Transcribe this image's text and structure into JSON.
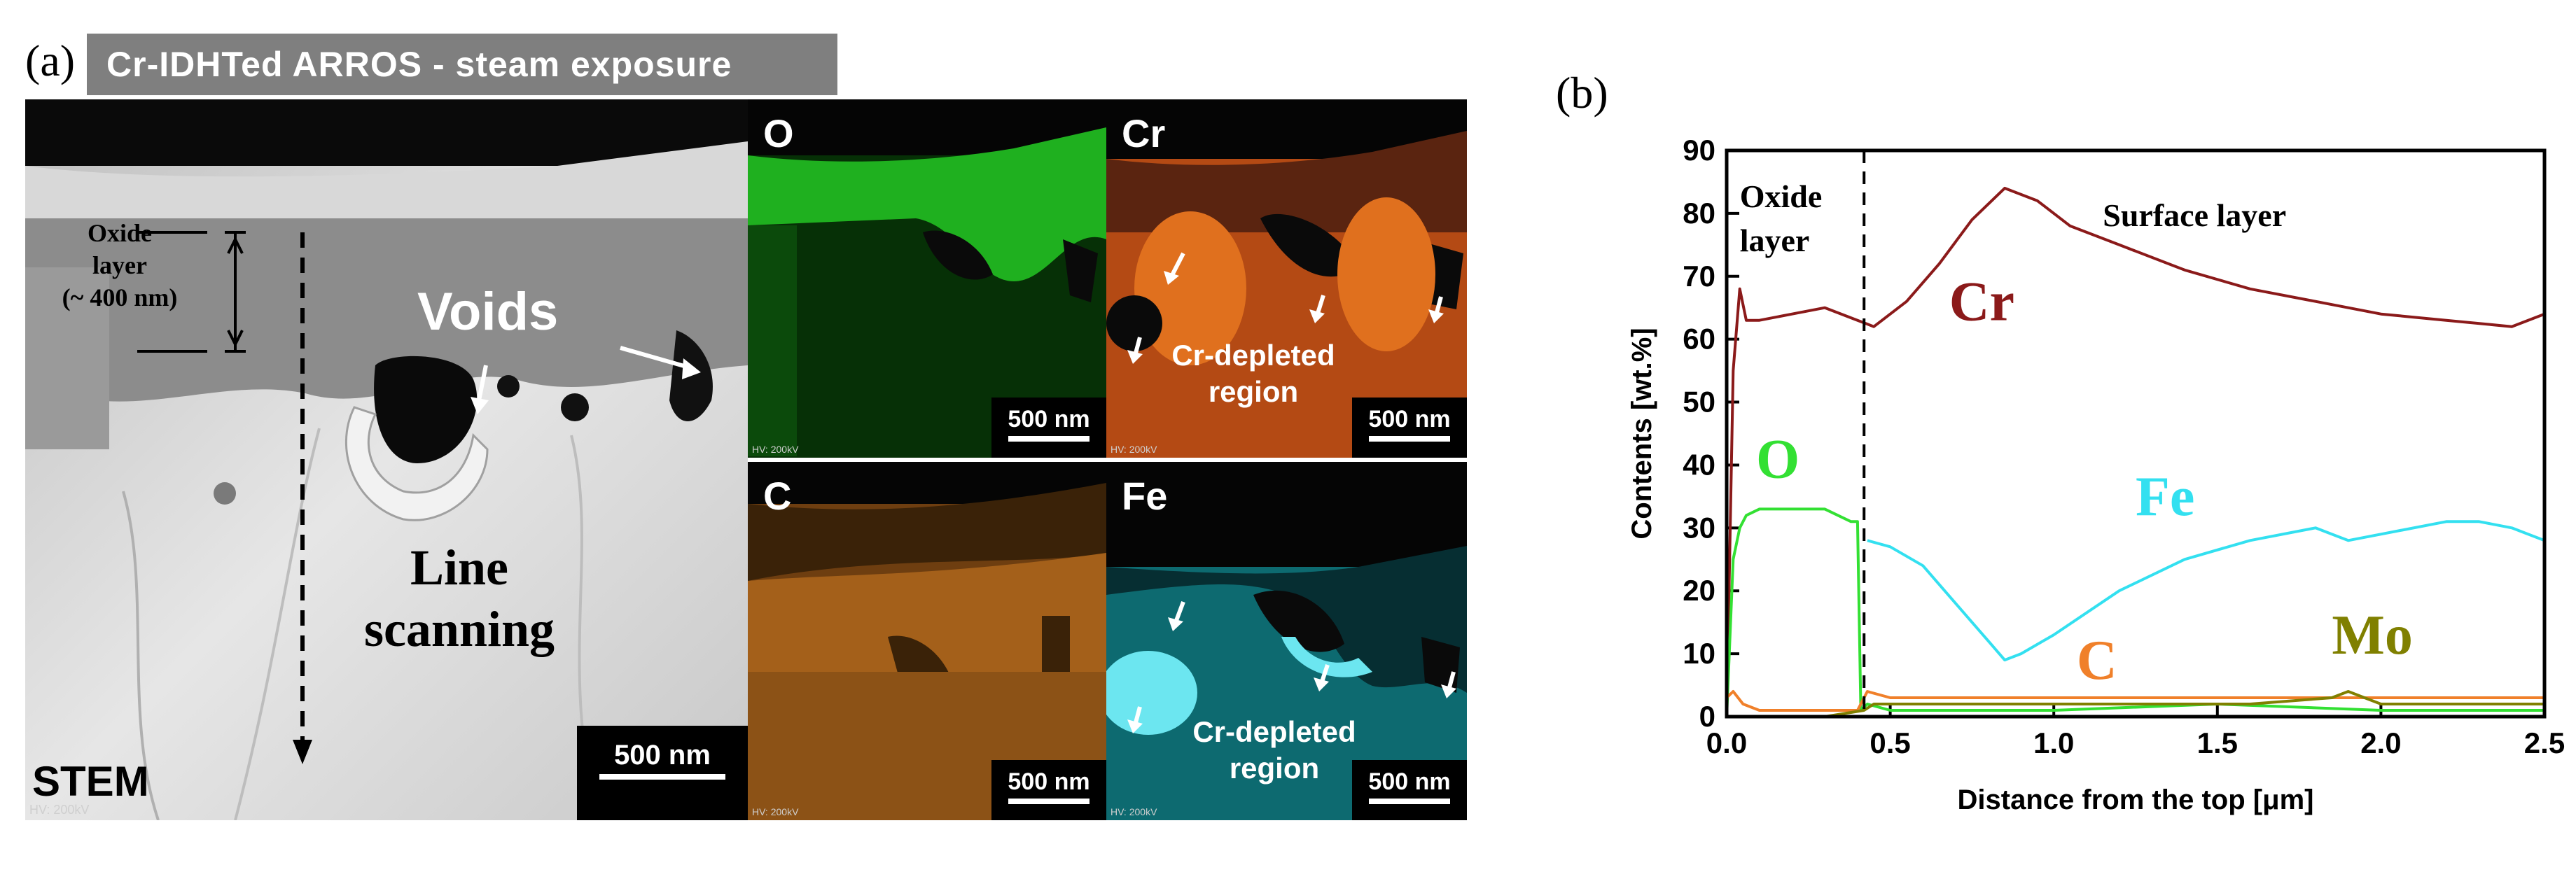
{
  "panel_a": {
    "label": "(a)",
    "title": "Cr-IDHTed ARROS - steam exposure",
    "stem": {
      "oxide_label_line1": "Oxide",
      "oxide_label_line2": "layer",
      "oxide_label_line3": "(~ 400 nm)",
      "voids": "Voids",
      "line_scan_line1": "Line",
      "line_scan_line2": "scanning",
      "stem_label": "STEM",
      "hv_text": "HV: 200kV",
      "scalebar": "500 nm"
    },
    "maps": {
      "o": {
        "title": "O",
        "scalebar": "500 nm",
        "hv": "HV: 200kV"
      },
      "cr": {
        "title": "Cr",
        "scalebar": "500 nm",
        "hv": "HV: 200kV",
        "region_line1": "Cr-depleted",
        "region_line2": "region"
      },
      "c": {
        "title": "C",
        "scalebar": "500 nm",
        "hv": "HV: 200kV"
      },
      "fe": {
        "title": "Fe",
        "scalebar": "500 nm",
        "hv": "HV: 200kV",
        "region_line1": "Cr-depleted",
        "region_line2": "region"
      }
    }
  },
  "panel_b": {
    "label": "(b)",
    "annotations": {
      "oxide_line1": "Oxide",
      "oxide_line2": "layer",
      "surface": "Surface layer"
    }
  },
  "chart_data": {
    "type": "line",
    "title": "",
    "xlabel": "Distance from the top [μm]",
    "ylabel": "Contents [wt.%]",
    "xlim": [
      0,
      2.5
    ],
    "ylim": [
      0,
      90
    ],
    "xticks": [
      0.0,
      0.5,
      1.0,
      1.5,
      2.0,
      2.5
    ],
    "xtick_labels": [
      "0.0",
      "0.5",
      "1.0",
      "1.5",
      "2.0",
      "2.5"
    ],
    "yticks": [
      0,
      10,
      20,
      30,
      40,
      50,
      60,
      70,
      80,
      90
    ],
    "ytick_labels": [
      "0",
      "10",
      "20",
      "30",
      "40",
      "50",
      "60",
      "70",
      "80",
      "90"
    ],
    "divider_x": 0.42,
    "series": [
      {
        "name": "Cr",
        "color": "#8b1a1a",
        "x": [
          0.0,
          0.02,
          0.04,
          0.06,
          0.1,
          0.2,
          0.3,
          0.4,
          0.45,
          0.55,
          0.65,
          0.75,
          0.85,
          0.95,
          1.05,
          1.2,
          1.4,
          1.6,
          1.8,
          2.0,
          2.2,
          2.4,
          2.5
        ],
        "y": [
          0,
          55,
          68,
          63,
          63,
          64,
          65,
          63,
          62,
          66,
          72,
          79,
          84,
          82,
          78,
          75,
          71,
          68,
          66,
          64,
          63,
          62,
          64
        ]
      },
      {
        "name": "Fe",
        "color": "#33e0f0",
        "x": [
          0.43,
          0.5,
          0.6,
          0.7,
          0.8,
          0.85,
          0.9,
          1.0,
          1.2,
          1.4,
          1.6,
          1.8,
          1.9,
          2.0,
          2.2,
          2.3,
          2.4,
          2.5
        ],
        "y": [
          28,
          27,
          24,
          18,
          12,
          9,
          10,
          13,
          20,
          25,
          28,
          30,
          28,
          29,
          31,
          31,
          30,
          28
        ]
      },
      {
        "name": "O",
        "color": "#33e033",
        "x": [
          0.0,
          0.02,
          0.04,
          0.06,
          0.1,
          0.2,
          0.3,
          0.38,
          0.4,
          0.41,
          0.43,
          0.5,
          1.0,
          1.5,
          2.0,
          2.5
        ],
        "y": [
          0,
          25,
          30,
          32,
          33,
          33,
          33,
          31,
          31,
          1,
          2,
          1,
          1,
          2,
          1,
          1
        ]
      },
      {
        "name": "C",
        "color": "#f0802a",
        "x": [
          0.0,
          0.02,
          0.05,
          0.1,
          0.2,
          0.3,
          0.4,
          0.43,
          0.5,
          0.7,
          1.0,
          1.3,
          1.6,
          1.9,
          2.2,
          2.5
        ],
        "y": [
          3,
          4,
          2,
          1,
          1,
          1,
          1,
          4,
          3,
          3,
          3,
          3,
          3,
          3,
          3,
          3
        ]
      },
      {
        "name": "Mo",
        "color": "#808000",
        "x": [
          0.0,
          0.3,
          0.42,
          0.45,
          0.7,
          1.0,
          1.3,
          1.6,
          1.85,
          1.9,
          2.0,
          2.2,
          2.5
        ],
        "y": [
          0,
          0,
          1,
          2,
          2,
          2,
          2,
          2,
          3,
          4,
          2,
          2,
          2
        ]
      }
    ],
    "labels": {
      "Cr": {
        "text": "Cr",
        "color": "#8b1a1a"
      },
      "O": {
        "text": "O",
        "color": "#33e033"
      },
      "Fe": {
        "text": "Fe",
        "color": "#33e0f0"
      },
      "C": {
        "text": "C",
        "color": "#f0802a"
      },
      "Mo": {
        "text": "Mo",
        "color": "#808000"
      }
    }
  }
}
